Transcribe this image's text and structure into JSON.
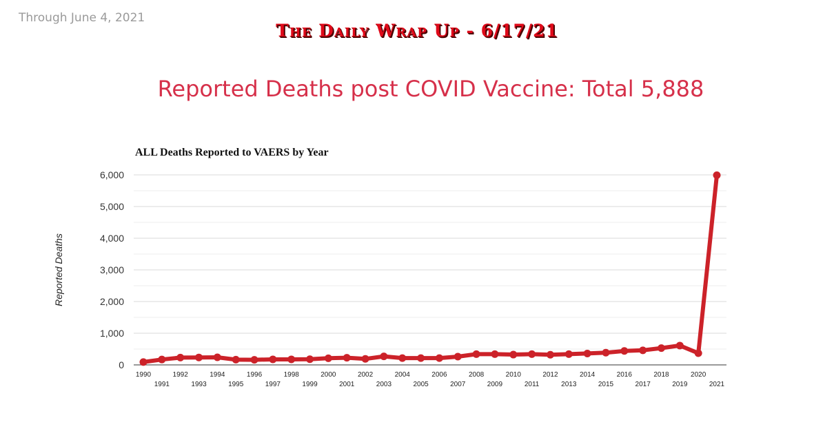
{
  "header": {
    "through": "Through June 4, 2021",
    "wrap_title": "The Daily Wrap Up - 6/17/21",
    "main_title": "Reported Deaths post COVID Vaccine: Total 5,888"
  },
  "colors": {
    "line": "#cc2229",
    "title_red": "#e00a1a",
    "headline": "#d6304a",
    "grid": "#d9d9d9"
  },
  "chart_data": {
    "type": "line",
    "title": "ALL Deaths Reported to VAERS by Year",
    "xlabel": "",
    "ylabel": "Reported Deaths",
    "ylim": [
      0,
      6000
    ],
    "yticks": [
      0,
      1000,
      2000,
      3000,
      4000,
      5000,
      6000
    ],
    "ytick_labels": [
      "0",
      "1,000",
      "2,000",
      "3,000",
      "4,000",
      "5,000",
      "6,000"
    ],
    "grid": true,
    "categories": [
      "1990",
      "1991",
      "1992",
      "1993",
      "1994",
      "1995",
      "1996",
      "1997",
      "1998",
      "1999",
      "2000",
      "2001",
      "2002",
      "2003",
      "2004",
      "2005",
      "2006",
      "2007",
      "2008",
      "2009",
      "2010",
      "2011",
      "2012",
      "2013",
      "2014",
      "2015",
      "2016",
      "2017",
      "2018",
      "2019",
      "2020",
      "2021"
    ],
    "series": [
      {
        "name": "Reported Deaths",
        "values": [
          90,
          170,
          230,
          235,
          240,
          165,
          160,
          175,
          175,
          180,
          210,
          225,
          190,
          270,
          215,
          215,
          215,
          260,
          340,
          340,
          325,
          340,
          320,
          340,
          360,
          385,
          440,
          460,
          530,
          610,
          370,
          5990
        ]
      }
    ]
  }
}
